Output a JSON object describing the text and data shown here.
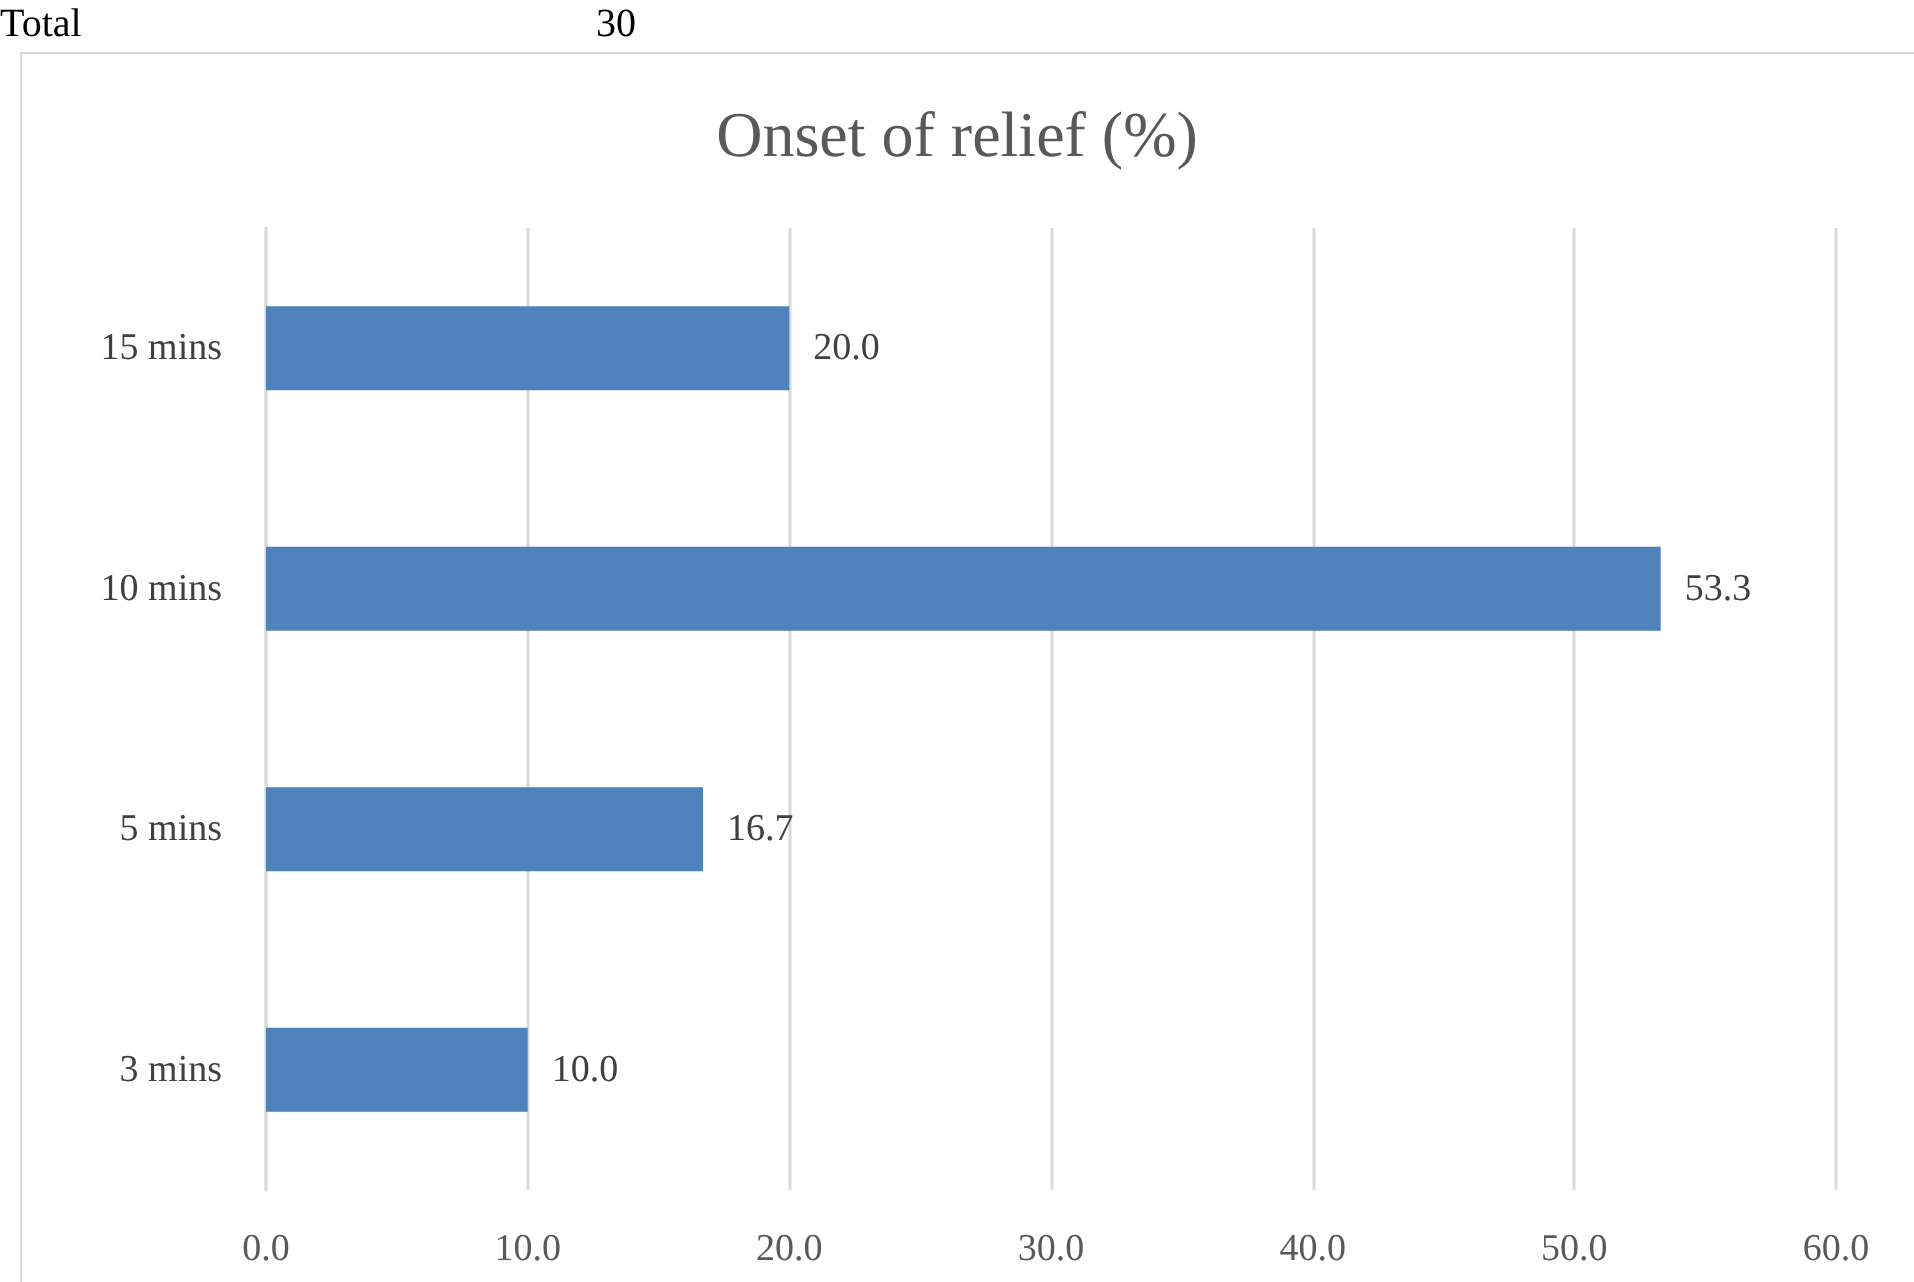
{
  "chart_data": {
    "type": "bar",
    "orientation": "horizontal",
    "title": "Onset of relief (%)",
    "categories": [
      "15 mins",
      "10 mins",
      "5 mins",
      "3 mins"
    ],
    "values": [
      20.0,
      53.3,
      16.7,
      10.0
    ],
    "color": "#4f81bd",
    "value_labels": [
      "20.0",
      "53.3",
      "16.7",
      "10.0"
    ],
    "xlim": [
      0,
      60
    ],
    "xticks": [
      {
        "value": 0,
        "label": "0.0"
      },
      {
        "value": 10,
        "label": "10.0"
      },
      {
        "value": 20,
        "label": "20.0"
      },
      {
        "value": 30,
        "label": "30.0"
      },
      {
        "value": 40,
        "label": "40.0"
      },
      {
        "value": 50,
        "label": "50.0"
      },
      {
        "value": 60,
        "label": "60.0"
      }
    ],
    "grid": "x",
    "annotations": [
      "Total",
      "30"
    ]
  }
}
